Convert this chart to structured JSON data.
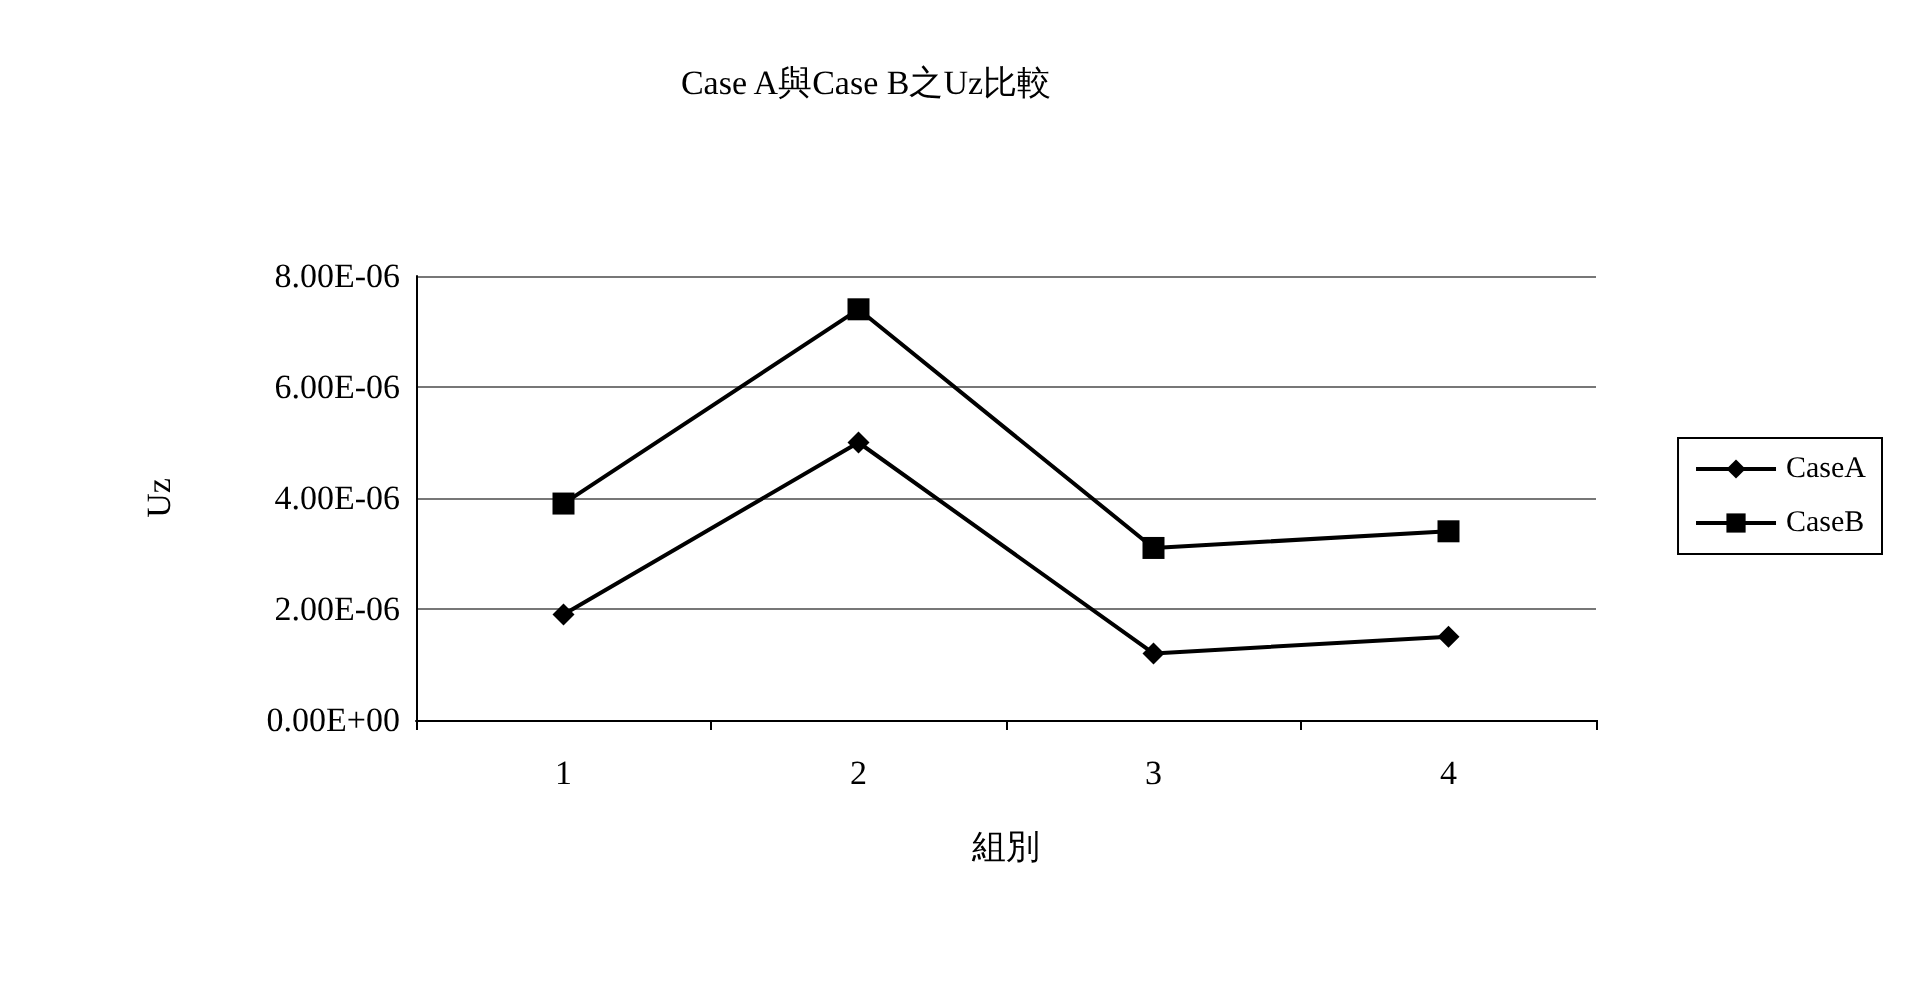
{
  "chart_data": {
    "type": "line",
    "title": "Case A與Case B之Uz比較",
    "xlabel": "組別",
    "ylabel": "Uz",
    "categories": [
      "1",
      "2",
      "3",
      "4"
    ],
    "series": [
      {
        "name": "CaseA",
        "color": "#000000",
        "marker": "diamond",
        "values": [
          1.9e-06,
          5e-06,
          1.2e-06,
          1.5e-06
        ]
      },
      {
        "name": "CaseB",
        "color": "#000000",
        "marker": "square",
        "values": [
          3.9e-06,
          7.4e-06,
          3.1e-06,
          3.4e-06
        ]
      }
    ],
    "ylim": [
      0,
      8e-06
    ],
    "yticks": [
      {
        "value": 0,
        "label": "0.00E+00"
      },
      {
        "value": 2e-06,
        "label": "2.00E-06"
      },
      {
        "value": 4e-06,
        "label": "4.00E-06"
      },
      {
        "value": 6e-06,
        "label": "6.00E-06"
      },
      {
        "value": 8e-06,
        "label": "8.00E-06"
      }
    ],
    "grid": "y",
    "legend": "right",
    "line_style": "solid"
  }
}
